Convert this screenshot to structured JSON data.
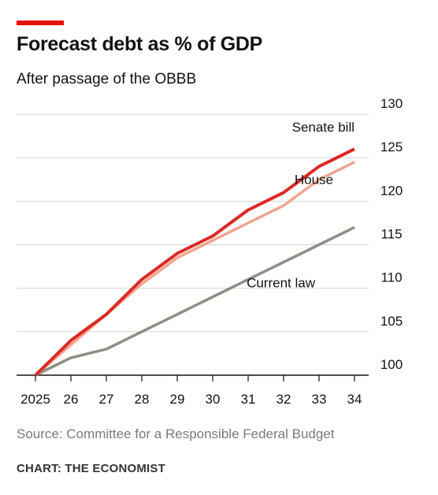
{
  "header": {
    "title": "Forecast debt as % of GDP",
    "subtitle": "After passage of the OBBB"
  },
  "footer": {
    "source": "Source: Committee for a Responsible Federal Budget",
    "credit": "CHART: THE ECONOMIST"
  },
  "colors": {
    "brand_bar": "#e3120b",
    "senate": "#db2a24",
    "house": "#f2a58e",
    "current": "#8e8e84",
    "grid": "#d9d9d9",
    "axis": "#121212"
  },
  "chart_data": {
    "type": "line",
    "title": "Forecast debt as % of GDP",
    "subtitle": "After passage of the OBBB",
    "x": [
      2025,
      2026,
      2027,
      2028,
      2029,
      2030,
      2031,
      2032,
      2033,
      2034
    ],
    "x_tick_labels": [
      "2025",
      "26",
      "27",
      "28",
      "29",
      "30",
      "31",
      "32",
      "33",
      "34"
    ],
    "ylim": [
      100,
      130
    ],
    "y_ticks": [
      100,
      105,
      110,
      115,
      120,
      125,
      130
    ],
    "y_tick_labels": [
      "100",
      "105",
      "110",
      "115",
      "120",
      "125",
      "130"
    ],
    "y_axis_side": "right",
    "grid": true,
    "series": [
      {
        "name": "Senate bill",
        "color": "#db2a24",
        "values": [
          100,
          104,
          107,
          111,
          114,
          116,
          119,
          121,
          124,
          126
        ]
      },
      {
        "name": "House",
        "color": "#f2a58e",
        "values": [
          100,
          103.5,
          107,
          110.5,
          113.5,
          115.5,
          117.5,
          119.5,
          122.5,
          124.5
        ]
      },
      {
        "name": "Current law",
        "color": "#8e8e84",
        "values": [
          100,
          102,
          103,
          105,
          107,
          109,
          111,
          113,
          115,
          117
        ]
      }
    ]
  }
}
